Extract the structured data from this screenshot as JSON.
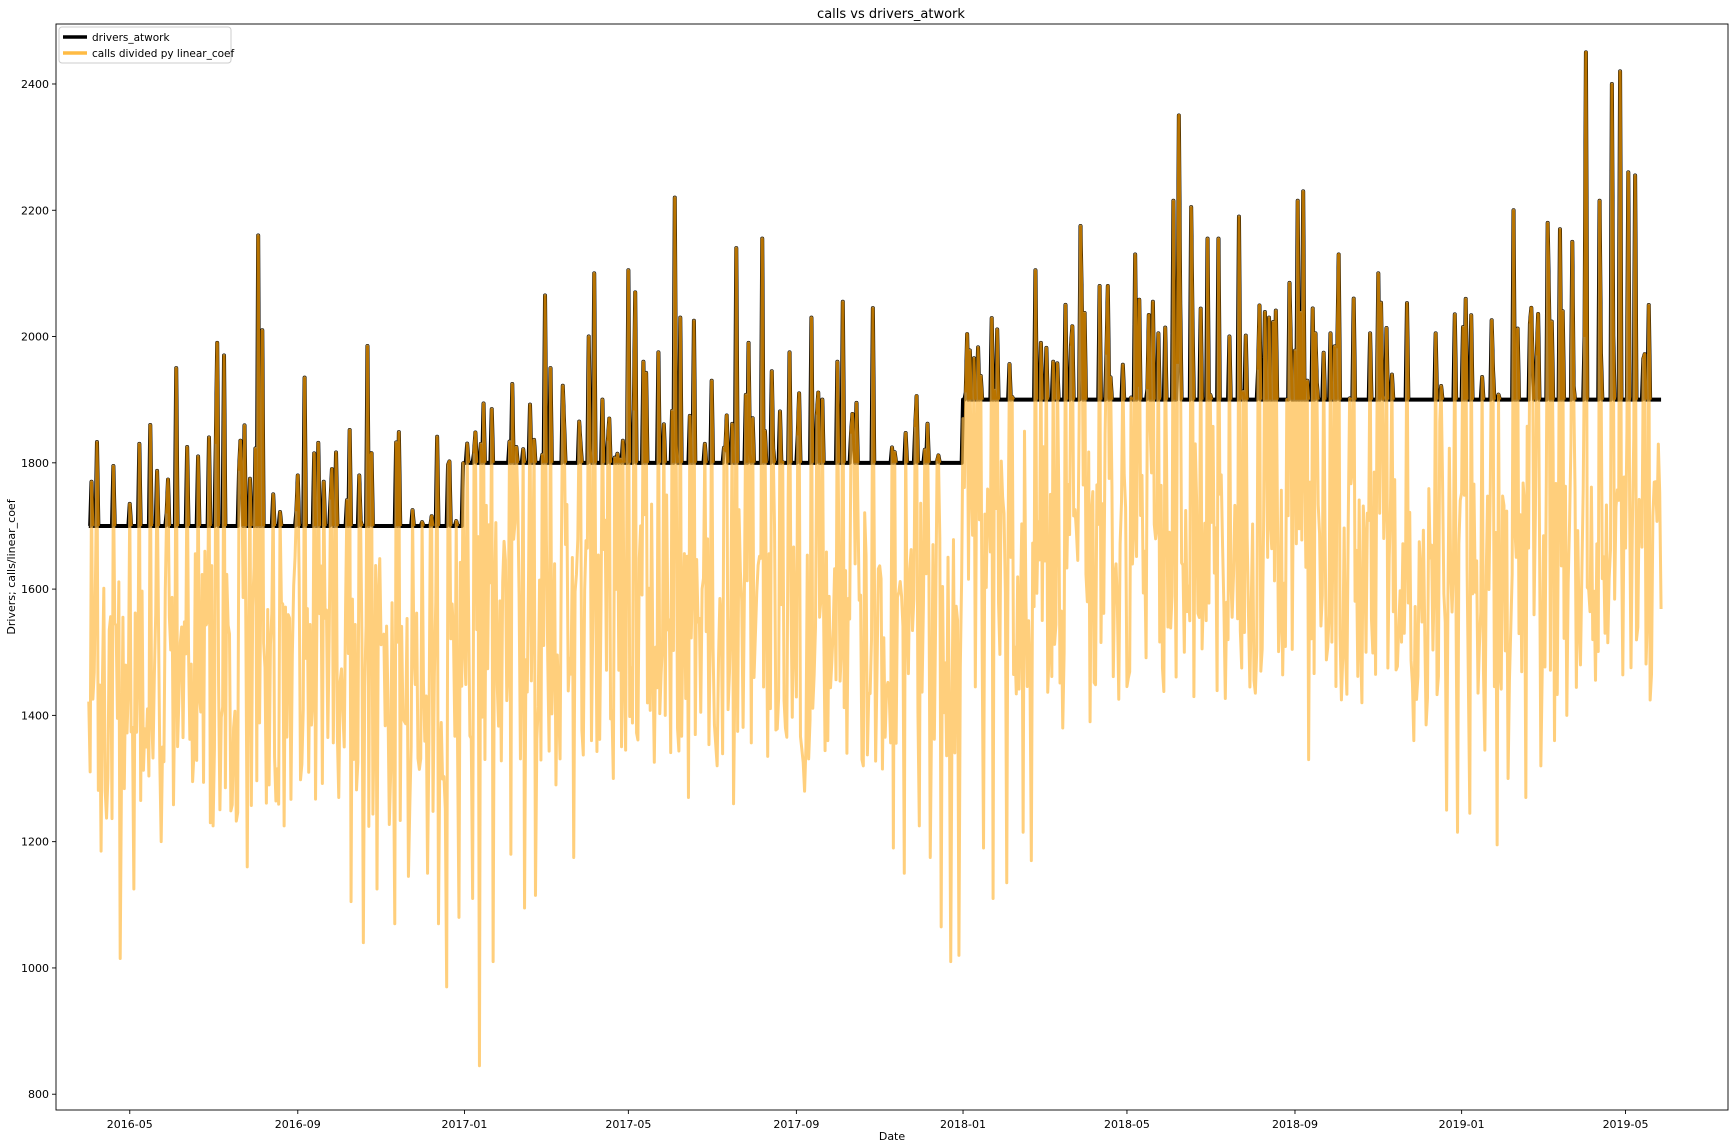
{
  "chart_data": {
    "type": "line",
    "title": "calls vs drivers_atwork",
    "xlabel": "Date",
    "ylabel": "Drivers; calls/linear_coef",
    "xlim": [
      "2016-03-08",
      "2019-07-15"
    ],
    "ylim": [
      775,
      2495
    ],
    "x_ticks": [
      "2016-05",
      "2016-09",
      "2017-01",
      "2017-05",
      "2017-09",
      "2018-01",
      "2018-05",
      "2018-09",
      "2019-01",
      "2019-05"
    ],
    "y_ticks": [
      800,
      1000,
      1200,
      1400,
      1600,
      1800,
      2000,
      2200,
      2400
    ],
    "grid": false,
    "legend_position": "top-left",
    "x_range": [
      "2016-04-01",
      "2019-05-27"
    ],
    "series": [
      {
        "name": "drivers_atwork",
        "color": "#000000",
        "baseline_steps": [
          {
            "from": "2016-04-01",
            "to": "2016-12-31",
            "value": 1700
          },
          {
            "from": "2017-01-01",
            "to": "2017-12-31",
            "value": 1800
          },
          {
            "from": "2018-01-01",
            "to": "2019-05-27",
            "value": 1900
          }
        ]
      },
      {
        "name": "calls divided py linear_coef",
        "color": "#ffbb44",
        "overlap_color": "#b87300",
        "peaks": [
          [
            "2016-04-03",
            1770
          ],
          [
            "2016-04-19",
            1795
          ],
          [
            "2016-05-01",
            1735
          ],
          [
            "2016-05-08",
            1830
          ],
          [
            "2016-05-16",
            1860
          ],
          [
            "2016-06-04",
            1950
          ],
          [
            "2016-06-12",
            1825
          ],
          [
            "2016-06-20",
            1810
          ],
          [
            "2016-06-28",
            1840
          ],
          [
            "2016-07-04",
            1990
          ],
          [
            "2016-07-09",
            1970
          ],
          [
            "2016-07-21",
            1835
          ],
          [
            "2016-08-03",
            2160
          ],
          [
            "2016-08-06",
            2010
          ],
          [
            "2016-08-14",
            1750
          ],
          [
            "2016-09-01",
            1780
          ],
          [
            "2016-09-06",
            1935
          ],
          [
            "2016-09-13",
            1815
          ],
          [
            "2016-09-20",
            1770
          ],
          [
            "2016-09-26",
            1790
          ],
          [
            "2016-10-16",
            1780
          ],
          [
            "2016-10-22",
            1985
          ],
          [
            "2016-11-24",
            1725
          ],
          [
            "2017-01-08",
            1815
          ],
          [
            "2017-01-13",
            1830
          ],
          [
            "2017-02-08",
            1825
          ],
          [
            "2017-03-01",
            2065
          ],
          [
            "2017-03-15",
            1860
          ],
          [
            "2017-03-27",
            1830
          ],
          [
            "2017-04-02",
            2000
          ],
          [
            "2017-04-06",
            2100
          ],
          [
            "2017-04-12",
            1900
          ],
          [
            "2017-04-17",
            1870
          ],
          [
            "2017-04-27",
            1835
          ],
          [
            "2017-05-01",
            2105
          ],
          [
            "2017-05-06",
            2070
          ],
          [
            "2017-05-12",
            1960
          ],
          [
            "2017-05-23",
            1975
          ],
          [
            "2017-06-04",
            2220
          ],
          [
            "2017-06-08",
            2030
          ],
          [
            "2017-06-18",
            2025
          ],
          [
            "2017-06-26",
            1830
          ],
          [
            "2017-07-12",
            1875
          ],
          [
            "2017-07-19",
            2140
          ],
          [
            "2017-07-28",
            1990
          ],
          [
            "2017-08-07",
            2155
          ],
          [
            "2017-08-14",
            1945
          ],
          [
            "2017-08-27",
            1975
          ],
          [
            "2017-09-03",
            1910
          ],
          [
            "2017-09-12",
            2030
          ],
          [
            "2017-09-20",
            1900
          ],
          [
            "2017-10-01",
            1960
          ],
          [
            "2017-10-05",
            2055
          ],
          [
            "2017-10-15",
            1895
          ],
          [
            "2017-10-27",
            2045
          ],
          [
            "2018-01-01",
            1870
          ],
          [
            "2018-02-23",
            2105
          ],
          [
            "2018-02-27",
            1990
          ],
          [
            "2018-03-08",
            1960
          ],
          [
            "2018-03-28",
            2175
          ],
          [
            "2018-04-11",
            2080
          ],
          [
            "2018-04-17",
            2080
          ],
          [
            "2018-05-07",
            2130
          ],
          [
            "2018-05-20",
            2055
          ],
          [
            "2018-05-24",
            2005
          ],
          [
            "2018-06-04",
            2215
          ],
          [
            "2018-06-08",
            2350
          ],
          [
            "2018-06-17",
            2205
          ],
          [
            "2018-06-29",
            2155
          ],
          [
            "2018-07-07",
            2155
          ],
          [
            "2018-07-15",
            2000
          ],
          [
            "2018-07-22",
            2190
          ],
          [
            "2018-08-13",
            2030
          ],
          [
            "2018-08-28",
            2085
          ],
          [
            "2018-09-03",
            2215
          ],
          [
            "2018-09-07",
            2230
          ],
          [
            "2018-09-16",
            2005
          ],
          [
            "2018-09-27",
            2005
          ],
          [
            "2018-10-03",
            2130
          ],
          [
            "2018-10-14",
            2060
          ],
          [
            "2018-10-26",
            2005
          ],
          [
            "2018-11-01",
            2100
          ],
          [
            "2018-12-13",
            2005
          ],
          [
            "2019-01-02",
            2015
          ],
          [
            "2019-02-08",
            2200
          ],
          [
            "2019-02-25",
            1970
          ],
          [
            "2019-03-05",
            2180
          ],
          [
            "2019-03-14",
            2170
          ],
          [
            "2019-03-23",
            2150
          ],
          [
            "2019-04-02",
            2450
          ],
          [
            "2019-04-12",
            2215
          ],
          [
            "2019-04-21",
            2400
          ],
          [
            "2019-04-27",
            2420
          ],
          [
            "2019-05-03",
            2260
          ],
          [
            "2019-05-08",
            2255
          ],
          [
            "2019-05-18",
            2050
          ]
        ],
        "troughs": [
          [
            "2016-04-10",
            1185
          ],
          [
            "2016-04-24",
            1015
          ],
          [
            "2016-05-04",
            1125
          ],
          [
            "2016-05-13",
            1350
          ],
          [
            "2016-05-24",
            1200
          ],
          [
            "2016-06-17",
            1340
          ],
          [
            "2016-07-01",
            1225
          ],
          [
            "2016-07-26",
            1160
          ],
          [
            "2016-08-11",
            1290
          ],
          [
            "2016-08-22",
            1225
          ],
          [
            "2016-09-09",
            1310
          ],
          [
            "2016-09-23",
            1365
          ],
          [
            "2016-10-01",
            1270
          ],
          [
            "2016-10-10",
            1105
          ],
          [
            "2016-10-19",
            1040
          ],
          [
            "2016-10-29",
            1125
          ],
          [
            "2016-11-11",
            1070
          ],
          [
            "2016-11-21",
            1145
          ],
          [
            "2016-12-05",
            1150
          ],
          [
            "2016-12-13",
            1070
          ],
          [
            "2016-12-19",
            970
          ],
          [
            "2016-12-28",
            1080
          ],
          [
            "2017-01-07",
            1110
          ],
          [
            "2017-01-12",
            845
          ],
          [
            "2017-01-22",
            1010
          ],
          [
            "2017-02-04",
            1180
          ],
          [
            "2017-02-14",
            1095
          ],
          [
            "2017-02-22",
            1115
          ],
          [
            "2017-03-09",
            1290
          ],
          [
            "2017-03-22",
            1175
          ],
          [
            "2017-04-04",
            1360
          ],
          [
            "2017-04-20",
            1300
          ],
          [
            "2017-04-29",
            1345
          ],
          [
            "2017-05-19",
            1480
          ],
          [
            "2017-05-28",
            1400
          ],
          [
            "2017-06-14",
            1270
          ],
          [
            "2017-06-23",
            1405
          ],
          [
            "2017-07-03",
            1385
          ],
          [
            "2017-07-17",
            1260
          ],
          [
            "2017-08-01",
            1460
          ],
          [
            "2017-08-11",
            1335
          ],
          [
            "2017-08-24",
            1380
          ],
          [
            "2017-09-07",
            1280
          ],
          [
            "2017-09-24",
            1360
          ],
          [
            "2017-10-08",
            1340
          ],
          [
            "2017-10-20",
            1320
          ],
          [
            "2017-11-03",
            1315
          ],
          [
            "2017-11-11",
            1190
          ],
          [
            "2017-11-19",
            1150
          ],
          [
            "2017-11-30",
            1225
          ],
          [
            "2017-12-08",
            1175
          ],
          [
            "2017-12-16",
            1065
          ],
          [
            "2017-12-23",
            1010
          ],
          [
            "2017-12-29",
            1020
          ],
          [
            "2018-01-16",
            1190
          ],
          [
            "2018-01-23",
            1110
          ],
          [
            "2018-02-02",
            1135
          ],
          [
            "2018-02-14",
            1215
          ],
          [
            "2018-02-20",
            1170
          ],
          [
            "2018-03-15",
            1380
          ],
          [
            "2018-04-04",
            1390
          ],
          [
            "2018-04-23",
            1640
          ],
          [
            "2018-05-14",
            1660
          ],
          [
            "2018-05-31",
            1540
          ],
          [
            "2018-06-12",
            1500
          ],
          [
            "2018-06-23",
            1555
          ],
          [
            "2018-07-11",
            1570
          ],
          [
            "2018-07-30",
            1445
          ],
          [
            "2018-08-07",
            1470
          ],
          [
            "2018-08-21",
            1555
          ],
          [
            "2018-09-11",
            1330
          ],
          [
            "2018-09-21",
            1590
          ],
          [
            "2018-10-08",
            1500
          ],
          [
            "2018-10-20",
            1420
          ],
          [
            "2018-10-30",
            1465
          ],
          [
            "2018-11-08",
            1475
          ],
          [
            "2018-11-20",
            1530
          ],
          [
            "2018-11-27",
            1360
          ],
          [
            "2018-12-06",
            1385
          ],
          [
            "2018-12-21",
            1250
          ],
          [
            "2018-12-29",
            1215
          ],
          [
            "2019-01-07",
            1245
          ],
          [
            "2019-01-18",
            1345
          ],
          [
            "2019-01-27",
            1195
          ],
          [
            "2019-02-04",
            1300
          ],
          [
            "2019-02-17",
            1270
          ],
          [
            "2019-02-28",
            1320
          ],
          [
            "2019-03-10",
            1360
          ],
          [
            "2019-03-19",
            1400
          ],
          [
            "2019-03-29",
            1480
          ],
          [
            "2019-04-07",
            1520
          ],
          [
            "2019-04-18",
            1515
          ],
          [
            "2019-05-01",
            1665
          ],
          [
            "2019-05-12",
            1725
          ],
          [
            "2019-05-23",
            1770
          ]
        ]
      }
    ]
  }
}
